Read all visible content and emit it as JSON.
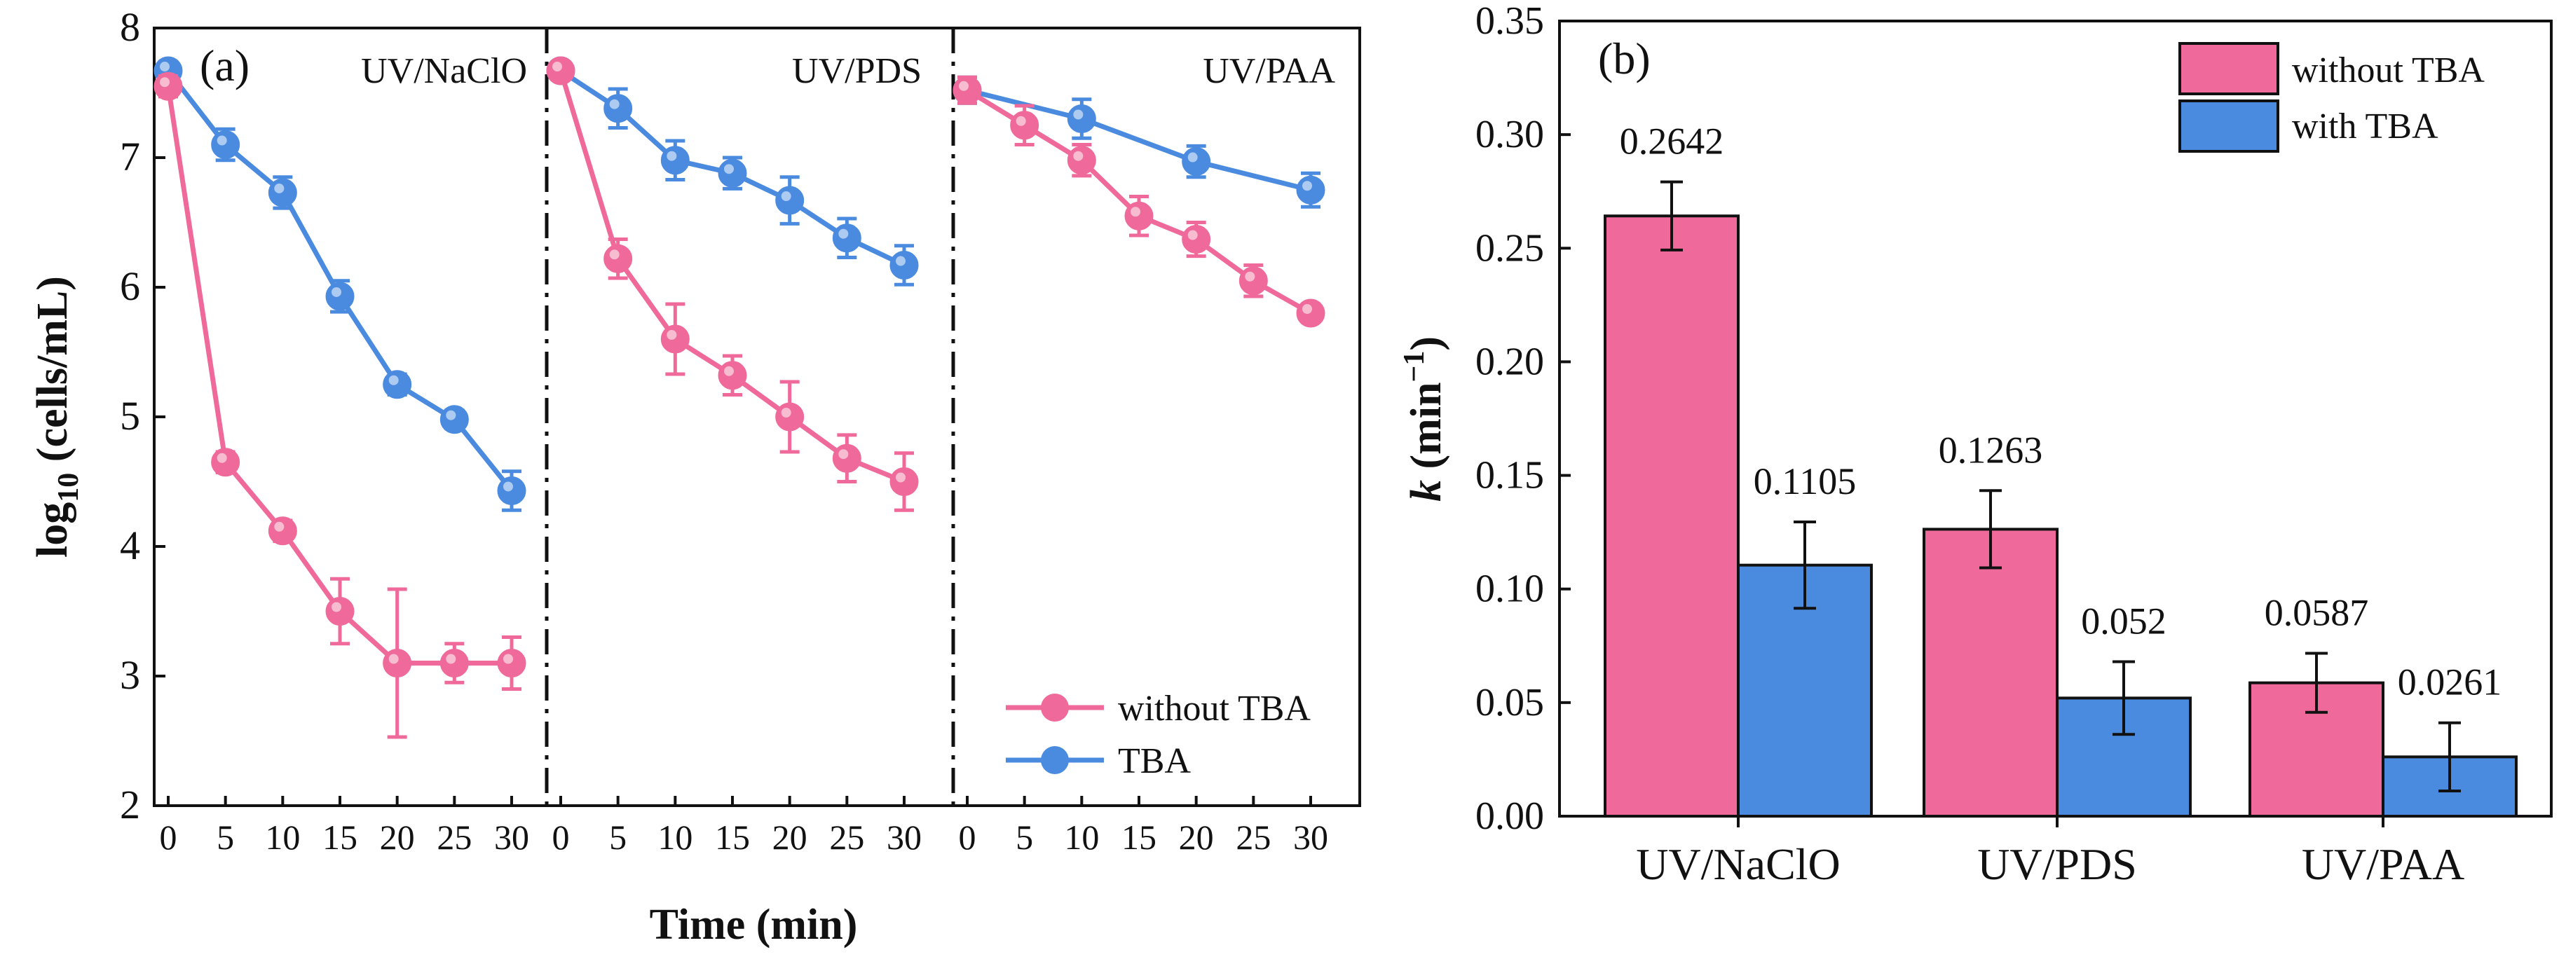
{
  "chart_data": [
    {
      "panel_label": "(a)",
      "type": "line",
      "xlabel": "Time (min)",
      "ylabel_main": "log",
      "ylabel_sub": "10",
      "ylabel_rest": " (cells/mL)",
      "ylim": [
        2,
        8
      ],
      "y_ticks": [
        "2",
        "3",
        "4",
        "5",
        "6",
        "7",
        "8"
      ],
      "x_ticks": [
        "0",
        "5",
        "10",
        "15",
        "20",
        "25",
        "30"
      ],
      "colors": {
        "without_tba": "#ef6a9a",
        "tba": "#4a8be0"
      },
      "legend": [
        "without TBA",
        "TBA"
      ],
      "segments": [
        {
          "label": "UV/NaClO",
          "x": [
            0,
            5,
            10,
            15,
            20,
            25,
            30
          ],
          "without_tba": {
            "y": [
              7.55,
              4.65,
              4.12,
              3.5,
              3.1,
              3.1,
              3.1
            ],
            "err": [
              0.08,
              0.08,
              0.08,
              0.25,
              0.57,
              0.15,
              0.2
            ]
          },
          "tba": {
            "y": [
              7.67,
              7.1,
              6.73,
              5.93,
              5.25,
              4.98,
              4.43
            ],
            "err": [
              0.07,
              0.12,
              0.12,
              0.12,
              0.08,
              0.07,
              0.15
            ]
          }
        },
        {
          "label": "UV/PDS",
          "x": [
            0,
            5,
            10,
            15,
            20,
            25,
            30
          ],
          "without_tba": {
            "y": [
              7.67,
              6.22,
              5.6,
              5.32,
              5.0,
              4.68,
              4.5
            ],
            "err": [
              0.05,
              0.15,
              0.27,
              0.15,
              0.27,
              0.18,
              0.22
            ]
          },
          "tba": {
            "y": [
              7.67,
              7.38,
              6.98,
              6.88,
              6.67,
              6.38,
              6.17
            ],
            "err": [
              0.05,
              0.15,
              0.15,
              0.12,
              0.18,
              0.15,
              0.15
            ]
          }
        },
        {
          "label": "UV/PAA",
          "x": [
            0,
            5,
            10,
            15,
            20,
            25,
            30
          ],
          "without_tba": {
            "y": [
              7.52,
              7.25,
              6.98,
              6.55,
              6.37,
              6.05,
              5.8
            ],
            "err": [
              0.1,
              0.15,
              0.12,
              0.15,
              0.13,
              0.12,
              0.07
            ]
          },
          "tba": {
            "y": [
              7.52,
              null,
              7.3,
              null,
              6.97,
              null,
              6.75
            ],
            "err": [
              0.1,
              null,
              0.15,
              null,
              0.12,
              null,
              0.13
            ]
          }
        }
      ]
    },
    {
      "panel_label": "(b)",
      "type": "bar",
      "categories": [
        "UV/NaClO",
        "UV/PDS",
        "UV/PAA"
      ],
      "ylabel_main": "k",
      "ylabel_rest": " (min",
      "ylabel_sup": "−1",
      "ylabel_close": ")",
      "ylim": [
        0,
        0.35
      ],
      "y_ticks": [
        "0.00",
        "0.05",
        "0.10",
        "0.15",
        "0.20",
        "0.25",
        "0.30",
        "0.35"
      ],
      "series": [
        {
          "name": "without TBA",
          "color": "#ef6a9a",
          "values": [
            0.2642,
            0.1263,
            0.0587
          ],
          "labels": [
            "0.2642",
            "0.1263",
            "0.0587"
          ],
          "err": [
            0.015,
            0.017,
            0.013
          ]
        },
        {
          "name": "with TBA",
          "color": "#4a8be0",
          "values": [
            0.1105,
            0.052,
            0.0261
          ],
          "labels": [
            "0.1105",
            "0.052",
            "0.0261"
          ],
          "err": [
            0.019,
            0.016,
            0.015
          ]
        }
      ]
    }
  ]
}
